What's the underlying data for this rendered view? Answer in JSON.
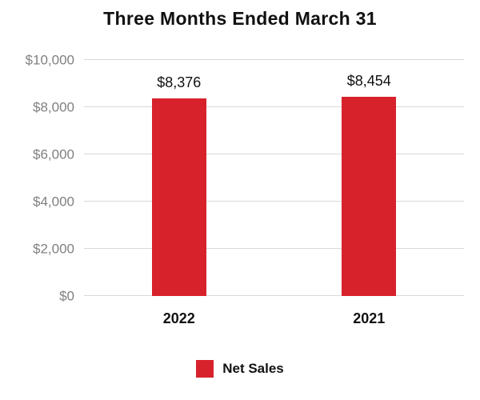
{
  "chart_data": {
    "type": "bar",
    "title": "Three Months Ended March 31",
    "categories": [
      "2022",
      "2021"
    ],
    "values": [
      8376,
      8454
    ],
    "value_labels": [
      "$8,376",
      "$8,454"
    ],
    "ylim": [
      0,
      10000
    ],
    "ytick_interval": 2000,
    "ytick_labels": [
      "$0",
      "$2,000",
      "$4,000",
      "$6,000",
      "$8,000",
      "$10,000"
    ],
    "grid": true,
    "legend_position": "bottom",
    "bar_color": "#d7222c",
    "axis_label_color": "#808080",
    "legend": [
      {
        "label": "Net Sales",
        "color": "#d7222c"
      }
    ]
  }
}
